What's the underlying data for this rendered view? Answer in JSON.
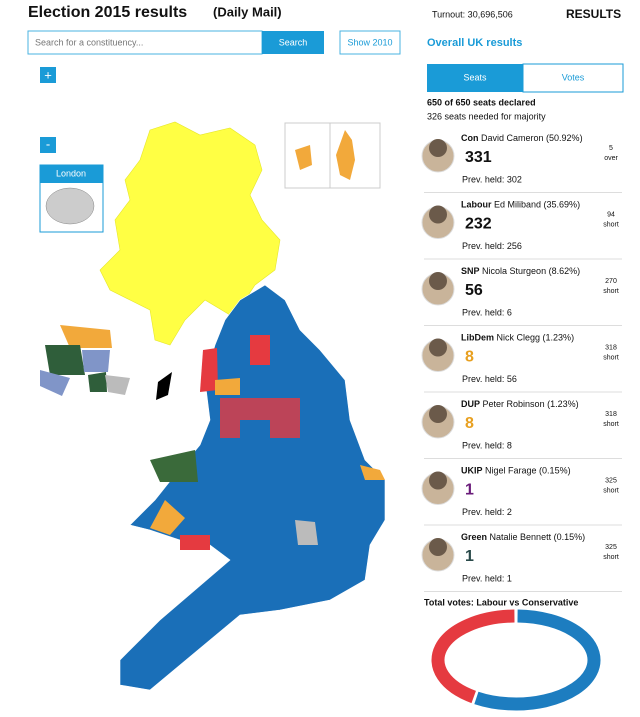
{
  "header": {
    "title": "Election 2015 results",
    "source": "(Daily Mail)",
    "turnout": "Turnout: 30,696,506",
    "results": "RESULTS"
  },
  "search": {
    "placeholder": "Search for a constituency...",
    "button": "Search",
    "show_previous": "Show 2010"
  },
  "map": {
    "zoom_in": "+",
    "zoom_out": "-",
    "inset": "London"
  },
  "panel": {
    "title": "Overall UK results",
    "tabs": [
      "Seats",
      "Votes"
    ],
    "declared": "650 of 650 seats declared",
    "majority": "326 seats needed for majority"
  },
  "parties": [
    {
      "party": "Con",
      "leader": "David Cameron (50.92%)",
      "seats": 331,
      "prev": "Prev. held: 302",
      "margin": 5,
      "margin_label": "over",
      "color": "#111111"
    },
    {
      "party": "Labour",
      "leader": "Ed Miliband (35.69%)",
      "seats": 232,
      "prev": "Prev. held: 256",
      "margin": 94,
      "margin_label": "short",
      "color": "#111111"
    },
    {
      "party": "SNP",
      "leader": "Nicola Sturgeon (8.62%)",
      "seats": 56,
      "prev": "Prev. held: 6",
      "margin": 270,
      "margin_label": "short",
      "color": "#111111"
    },
    {
      "party": "LibDem",
      "leader": "Nick Clegg (1.23%)",
      "seats": 8,
      "prev": "Prev. held: 56",
      "margin": 318,
      "margin_label": "short",
      "color": "#e8a020"
    },
    {
      "party": "DUP",
      "leader": "Peter Robinson (1.23%)",
      "seats": 8,
      "prev": "Prev. held: 8",
      "margin": 318,
      "margin_label": "short",
      "color": "#e8a020"
    },
    {
      "party": "UKIP",
      "leader": "Nigel Farage (0.15%)",
      "seats": 1,
      "prev": "Prev. held: 2",
      "margin": 325,
      "margin_label": "short",
      "color": "#6a1b7a"
    },
    {
      "party": "Green",
      "leader": "Natalie Bennett (0.15%)",
      "seats": 1,
      "prev": "Prev. held: 1",
      "margin": 325,
      "margin_label": "short",
      "color": "#2a4a4a"
    }
  ],
  "total_votes": {
    "title": "Total votes: Labour vs Conservative",
    "values": [
      41.2,
      58.8
    ],
    "colors": [
      "#e53a40",
      "#1d7dc0"
    ]
  }
}
